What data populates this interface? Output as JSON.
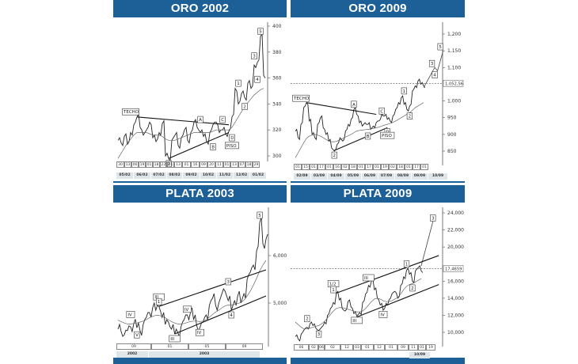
{
  "colors": {
    "header": "#1d5f97",
    "price": "#222222",
    "average": "#555555",
    "trendline": "#111111"
  },
  "chart_data": [
    {
      "type": "line",
      "title": "ORO 2002",
      "yticks": [
        "400",
        "380",
        "360",
        "340",
        "320",
        "300"
      ],
      "ytick_values": [
        400,
        380,
        360,
        340,
        320,
        300
      ],
      "x_top": [
        "30",
        "13",
        "06",
        "19",
        "01",
        "18",
        "22",
        "01",
        "13",
        "01",
        "16",
        "09",
        "20",
        "11",
        "01",
        "13",
        "07",
        "18",
        "29"
      ],
      "x_bottom": [
        "05/02",
        "06/02",
        "07/02",
        "08/02",
        "09/02",
        "10/02",
        "11/02",
        "12/02",
        "01/02"
      ],
      "price": [
        312,
        310,
        315,
        309,
        318,
        324,
        330,
        322,
        316,
        320,
        326,
        314,
        311,
        318,
        325,
        300,
        298,
        312,
        316,
        308,
        314,
        320,
        312,
        318,
        326,
        322,
        318,
        315,
        311,
        318,
        324,
        326,
        318,
        320,
        317,
        319,
        330,
        352,
        340,
        348,
        345,
        356,
        352,
        370,
        372,
        392,
        362
      ],
      "average": [
        298,
        302,
        306,
        310,
        313,
        316,
        318,
        318,
        318,
        318,
        317,
        316,
        316,
        316,
        315,
        313,
        312,
        312,
        312,
        313,
        314,
        315,
        316,
        317,
        318,
        318,
        318,
        318,
        318,
        318,
        319,
        320,
        320,
        320,
        320,
        320,
        322,
        326,
        330,
        334,
        338,
        341,
        344,
        347,
        349,
        351,
        352
      ],
      "trendlines": [
        [
          [
            6,
            330
          ],
          [
            35,
            324
          ]
        ],
        [
          [
            16,
            298
          ],
          [
            35,
            318
          ]
        ]
      ],
      "labels": [
        {
          "t": "TECHO",
          "i": 4,
          "v": 334
        },
        {
          "t": "2",
          "i": 16,
          "v": 294
        },
        {
          "t": "A",
          "i": 26,
          "v": 328
        },
        {
          "t": "B",
          "i": 30,
          "v": 307
        },
        {
          "t": "C",
          "i": 33,
          "v": 328
        },
        {
          "t": "D",
          "i": 36,
          "v": 314
        },
        {
          "t": "PISO",
          "i": 36,
          "v": 308
        },
        {
          "t": "1",
          "i": 38,
          "v": 356
        },
        {
          "t": "2",
          "i": 40,
          "v": 338
        },
        {
          "t": "3",
          "i": 43,
          "v": 377
        },
        {
          "t": "4",
          "i": 44,
          "v": 359
        },
        {
          "t": "5",
          "i": 45,
          "v": 396
        }
      ]
    },
    {
      "type": "line",
      "title": "ORO 2009",
      "yticks": [
        "1,200",
        "1,150",
        "1,100",
        "1,000",
        "950",
        "900",
        "850"
      ],
      "ytick_values": [
        1200,
        1150,
        1100,
        1000,
        950,
        900,
        850
      ],
      "hline": {
        "value": 1052.56,
        "label": "1,052,56"
      },
      "x_top": [
        "01",
        "15",
        "01",
        "17",
        "01",
        "16",
        "02",
        "18",
        "01",
        "17",
        "01",
        "19",
        "02",
        "18",
        "01",
        "17",
        "01"
      ],
      "x_bottom": [
        "02/09",
        "03/09",
        "04/09",
        "05/09",
        "06/09",
        "07/09",
        "08/09",
        "09/09",
        "10/09"
      ],
      "price": [
        910,
        890,
        930,
        980,
        995,
        940,
        900,
        890,
        930,
        950,
        920,
        900,
        880,
        860,
        850,
        870,
        890,
        880,
        910,
        930,
        945,
        975,
        960,
        935,
        925,
        935,
        930,
        915,
        925,
        935,
        940,
        960,
        955,
        945,
        940,
        955,
        975,
        995,
        1010,
        990,
        975,
        985,
        1030,
        1045,
        1060,
        1050,
        1045
      ],
      "average": [
        830,
        845,
        860,
        875,
        888,
        895,
        898,
        900,
        898,
        895,
        890,
        885,
        880,
        878,
        878,
        880,
        884,
        888,
        892,
        896,
        900,
        905,
        910,
        912,
        913,
        914,
        915,
        916,
        918,
        920,
        922,
        925,
        928,
        930,
        933,
        936,
        940,
        945,
        950,
        955,
        960,
        965,
        972,
        980,
        985,
        990,
        995
      ],
      "projection": [
        [
          46,
          1040
        ],
        [
          50,
          1100
        ],
        [
          51,
          1090
        ],
        [
          53,
          1150
        ]
      ],
      "trendlines": [
        [
          [
            4,
            995
          ],
          [
            29,
            960
          ]
        ],
        [
          [
            14,
            852
          ],
          [
            33,
            920
          ]
        ]
      ],
      "labels": [
        {
          "t": "TECHO",
          "i": 2,
          "v": 1008
        },
        {
          "t": "2",
          "i": 14,
          "v": 838
        },
        {
          "t": "A",
          "i": 21,
          "v": 990
        },
        {
          "t": "B",
          "i": 26,
          "v": 895
        },
        {
          "t": "C",
          "i": 31,
          "v": 970
        },
        {
          "t": "D",
          "i": 33,
          "v": 908
        },
        {
          "t": "PISO",
          "i": 33,
          "v": 897
        },
        {
          "t": "1",
          "i": 39,
          "v": 1030
        },
        {
          "t": "2",
          "i": 41,
          "v": 955
        },
        {
          "t": "3",
          "i": 49,
          "v": 1112
        },
        {
          "t": "4",
          "i": 50,
          "v": 1078
        },
        {
          "t": "5",
          "i": 52,
          "v": 1162
        }
      ]
    },
    {
      "type": "line",
      "title": "PLATA 2003",
      "yticks": [
        "6,000",
        "5,000"
      ],
      "ytick_values": [
        6000,
        5000
      ],
      "x_top": [
        "09",
        "01",
        "05",
        "09"
      ],
      "x_bottom": [
        "2002",
        "2003"
      ],
      "price": [
        4450,
        4400,
        4330,
        4420,
        4500,
        4560,
        4480,
        4420,
        4550,
        4700,
        4800,
        4900,
        4850,
        4930,
        4700,
        4550,
        4600,
        4450,
        4350,
        4380,
        4500,
        4650,
        4750,
        4800,
        4650,
        4520,
        4480,
        4600,
        4750,
        4950,
        5100,
        4950,
        5000,
        5200,
        5250,
        5050,
        4850,
        5050,
        5150,
        5000,
        5200,
        5500,
        5650,
        5800,
        6100,
        6700,
        6250,
        6350
      ],
      "average": [
        4640,
        4610,
        4580,
        4560,
        4560,
        4570,
        4580,
        4600,
        4620,
        4650,
        4690,
        4720,
        4740,
        4740,
        4720,
        4690,
        4650,
        4610,
        4580,
        4560,
        4560,
        4570,
        4590,
        4610,
        4620,
        4620,
        4610,
        4620,
        4650,
        4700,
        4760,
        4810,
        4850,
        4900,
        4940,
        4960,
        4960,
        4970,
        4990,
        5010,
        5060,
        5150,
        5250,
        5380,
        5520,
        5680,
        5800,
        5900
      ],
      "trendlines": [
        [
          [
            13,
            4930
          ],
          [
            47,
            5700
          ]
        ],
        [
          [
            18,
            4350
          ],
          [
            47,
            5150
          ]
        ]
      ],
      "labels": [
        {
          "t": "IV",
          "i": 4,
          "v": 4760
        },
        {
          "t": "V",
          "i": 6,
          "v": 4330
        },
        {
          "t": "III",
          "i": 13,
          "v": 5130
        },
        {
          "t": "1",
          "i": 13,
          "v": 5030
        },
        {
          "t": "IV",
          "i": 22,
          "v": 4870
        },
        {
          "t": "III",
          "i": 18,
          "v": 4250
        },
        {
          "t": "IV",
          "i": 26,
          "v": 4380
        },
        {
          "t": "3",
          "i": 35,
          "v": 5450
        },
        {
          "t": "4",
          "i": 36,
          "v": 4750
        },
        {
          "t": "5",
          "i": 45,
          "v": 6850
        }
      ]
    },
    {
      "type": "line",
      "title": "PLATA 2009",
      "yticks": [
        "24,000",
        "22,000",
        "20,000",
        "16,000",
        "14,000",
        "12,000",
        "10,000"
      ],
      "ytick_values": [
        24000,
        22000,
        20000,
        16000,
        14000,
        12000,
        10000
      ],
      "hline": {
        "value": 17465.9,
        "label": "17,4659"
      },
      "x_top": [
        "06",
        "02",
        "06",
        "02",
        "12",
        "03",
        "01",
        "12",
        "01",
        "09",
        "11",
        "01",
        "19"
      ],
      "x_bottom": [
        "10/09"
      ],
      "price": [
        9500,
        9200,
        9800,
        10300,
        10600,
        11000,
        10800,
        10500,
        10200,
        10600,
        11200,
        12000,
        12800,
        13500,
        14600,
        13800,
        12800,
        12500,
        13600,
        13000,
        12200,
        11900,
        12300,
        13500,
        14500,
        15500,
        16000,
        15000,
        14000,
        13200,
        12600,
        13400,
        13800,
        14500,
        14800,
        14000,
        15500,
        16500,
        17300,
        16800,
        16000,
        17200,
        17600,
        17200
      ],
      "average": [
        11200,
        10900,
        10600,
        10400,
        10400,
        10500,
        10600,
        10700,
        10800,
        11000,
        11300,
        11700,
        12100,
        12500,
        12800,
        12900,
        12900,
        12800,
        12700,
        12600,
        12500,
        12400,
        12400,
        12500,
        12800,
        13200,
        13600,
        13900,
        14000,
        13900,
        13700,
        13600,
        13600,
        13700,
        13900,
        14100,
        14500,
        15000,
        15400,
        15600,
        15700,
        15900,
        16100,
        16300
      ],
      "projection": [
        [
          43,
          17800
        ],
        [
          47,
          23000
        ]
      ],
      "trendlines": [
        [
          [
            14,
            14600
          ],
          [
            49,
            19000
          ]
        ],
        [
          [
            21,
            11800
          ],
          [
            49,
            15600
          ]
        ]
      ],
      "labels": [
        {
          "t": "2",
          "i": 4,
          "v": 11600
        },
        {
          "t": "3",
          "i": 8,
          "v": 9800
        },
        {
          "t": "1/2",
          "i": 13,
          "v": 15700
        },
        {
          "t": "1",
          "i": 13,
          "v": 15000
        },
        {
          "t": "III",
          "i": 21,
          "v": 11400
        },
        {
          "t": "III",
          "i": 25,
          "v": 16400
        },
        {
          "t": "IV",
          "i": 30,
          "v": 12100
        },
        {
          "t": "1",
          "i": 38,
          "v": 18000
        },
        {
          "t": "2",
          "i": 40,
          "v": 15200
        },
        {
          "t": "3",
          "i": 47,
          "v": 23400
        }
      ]
    }
  ]
}
